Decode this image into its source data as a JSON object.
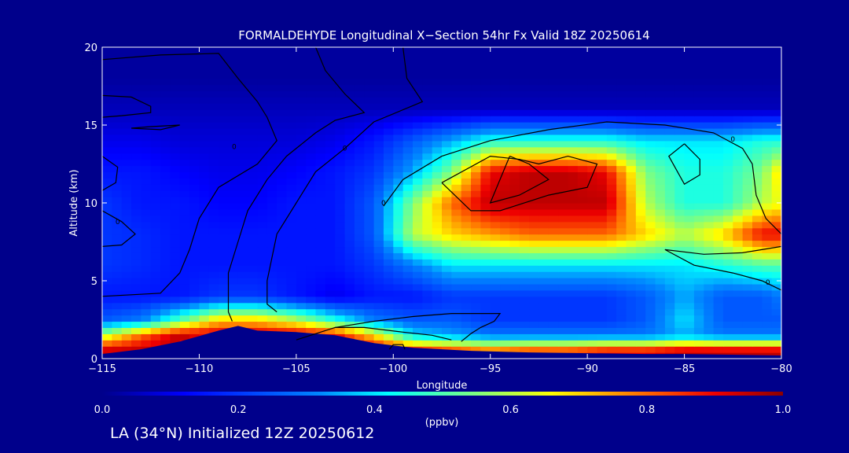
{
  "chart_data": {
    "type": "heatmap",
    "title": "FORMALDEHYDE Longitudinal X−Section 54hr  Fx Valid 18Z 20250614",
    "xlabel": "Longitude",
    "ylabel": "Altitude (km)",
    "xlim": [
      -115,
      -80
    ],
    "ylim": [
      0,
      20
    ],
    "x_ticks": [
      "−115",
      "−110",
      "−105",
      "−100",
      "−95",
      "−90",
      "−85",
      "−80"
    ],
    "y_ticks": [
      "0",
      "5",
      "10",
      "15",
      "20"
    ],
    "colorbar": {
      "range": [
        0.0,
        1.0
      ],
      "ticks": [
        "0.0",
        "0.2",
        "0.4",
        "0.6",
        "0.8",
        "1.0"
      ],
      "unit": "(ppbv)"
    },
    "x_values": [
      -115,
      -113,
      -111,
      -109,
      -107,
      -105,
      -103,
      -101,
      -99,
      -97,
      -95,
      -93,
      -91,
      -89,
      -87,
      -85,
      -83,
      -81,
      -80
    ],
    "y_values": [
      0.5,
      1.5,
      2.5,
      4,
      6,
      8,
      10,
      12,
      14,
      16,
      18
    ],
    "z": [
      [
        0.95,
        0.95,
        0.95,
        0.0,
        0.0,
        0.0,
        0.95,
        0.95,
        0.9,
        0.85,
        0.8,
        0.85,
        0.85,
        0.9,
        0.9,
        0.95,
        0.95,
        0.95,
        0.95
      ],
      [
        0.6,
        0.8,
        0.95,
        0.95,
        0.95,
        0.95,
        0.9,
        0.7,
        0.4,
        0.35,
        0.3,
        0.3,
        0.3,
        0.3,
        0.3,
        0.35,
        0.3,
        0.3,
        0.3
      ],
      [
        0.25,
        0.3,
        0.5,
        0.7,
        0.7,
        0.6,
        0.45,
        0.3,
        0.25,
        0.25,
        0.2,
        0.2,
        0.2,
        0.2,
        0.25,
        0.4,
        0.25,
        0.25,
        0.25
      ],
      [
        0.15,
        0.15,
        0.15,
        0.2,
        0.2,
        0.15,
        0.1,
        0.15,
        0.15,
        0.2,
        0.2,
        0.2,
        0.2,
        0.2,
        0.25,
        0.35,
        0.25,
        0.25,
        0.3
      ],
      [
        0.2,
        0.18,
        0.15,
        0.15,
        0.15,
        0.15,
        0.15,
        0.2,
        0.3,
        0.4,
        0.4,
        0.4,
        0.4,
        0.4,
        0.4,
        0.4,
        0.45,
        0.5,
        0.5
      ],
      [
        0.2,
        0.18,
        0.15,
        0.15,
        0.15,
        0.15,
        0.15,
        0.25,
        0.6,
        0.7,
        0.75,
        0.8,
        0.8,
        0.8,
        0.7,
        0.6,
        0.7,
        0.9,
        0.9
      ],
      [
        0.2,
        0.15,
        0.15,
        0.12,
        0.12,
        0.15,
        0.15,
        0.25,
        0.55,
        0.8,
        0.95,
        0.95,
        0.95,
        0.95,
        0.6,
        0.45,
        0.45,
        0.6,
        0.65
      ],
      [
        0.15,
        0.15,
        0.12,
        0.1,
        0.1,
        0.12,
        0.15,
        0.2,
        0.35,
        0.55,
        0.9,
        0.95,
        0.95,
        0.9,
        0.55,
        0.45,
        0.45,
        0.55,
        0.7
      ],
      [
        0.1,
        0.1,
        0.08,
        0.08,
        0.08,
        0.08,
        0.1,
        0.15,
        0.25,
        0.35,
        0.45,
        0.45,
        0.45,
        0.45,
        0.4,
        0.4,
        0.4,
        0.45,
        0.45
      ],
      [
        0.05,
        0.05,
        0.05,
        0.05,
        0.05,
        0.05,
        0.05,
        0.05,
        0.05,
        0.05,
        0.05,
        0.05,
        0.05,
        0.05,
        0.05,
        0.05,
        0.05,
        0.05,
        0.05
      ],
      [
        0.02,
        0.02,
        0.02,
        0.02,
        0.02,
        0.02,
        0.02,
        0.02,
        0.02,
        0.02,
        0.02,
        0.02,
        0.02,
        0.02,
        0.02,
        0.02,
        0.02,
        0.02,
        0.02
      ]
    ],
    "terrain": [
      [
        -115,
        0.3
      ],
      [
        -113,
        0.6
      ],
      [
        -111,
        1.1
      ],
      [
        -109,
        1.8
      ],
      [
        -108,
        2.1
      ],
      [
        -107,
        1.8
      ],
      [
        -105,
        1.7
      ],
      [
        -103,
        1.5
      ],
      [
        -101,
        1.0
      ],
      [
        -99,
        0.7
      ],
      [
        -96,
        0.5
      ],
      [
        -93,
        0.4
      ],
      [
        -90,
        0.35
      ],
      [
        -87,
        0.3
      ],
      [
        -85,
        0.3
      ],
      [
        -80,
        0.2
      ]
    ],
    "contours": [
      {
        "label": "0",
        "label_at": [
          -108.2,
          13.6
        ],
        "points": [
          [
            -115,
            19.2
          ],
          [
            -112,
            19.5
          ],
          [
            -109,
            19.6
          ],
          [
            -108,
            18.0
          ],
          [
            -107,
            16.5
          ],
          [
            -106.5,
            15.5
          ],
          [
            -106,
            14.0
          ],
          [
            -107,
            12.5
          ],
          [
            -109,
            11.0
          ],
          [
            -110,
            9.0
          ],
          [
            -110.5,
            7.0
          ],
          [
            -111,
            5.5
          ],
          [
            -112,
            4.2
          ],
          [
            -115,
            4.0
          ]
        ]
      },
      {
        "label": "0",
        "label_at": [
          -102.5,
          13.5
        ],
        "points": [
          [
            -104,
            20
          ],
          [
            -103.5,
            18.5
          ],
          [
            -102.5,
            17.0
          ],
          [
            -101.5,
            15.8
          ],
          [
            -103,
            15.3
          ],
          [
            -104,
            14.5
          ],
          [
            -105.5,
            13.0
          ],
          [
            -106.5,
            11.5
          ],
          [
            -107.5,
            9.5
          ],
          [
            -108,
            7.5
          ],
          [
            -108.5,
            5.5
          ],
          [
            -108.5,
            3.0
          ],
          [
            -108.3,
            2.4
          ]
        ]
      },
      {
        "label": "0",
        "label_at": [
          -100.5,
          10.0
        ],
        "points": [
          [
            -99.5,
            20
          ],
          [
            -99.3,
            18.0
          ],
          [
            -98.5,
            16.5
          ],
          [
            -101,
            15.2
          ],
          [
            -102.5,
            13.5
          ],
          [
            -104,
            12.0
          ],
          [
            -105,
            10.0
          ],
          [
            -106,
            8.0
          ],
          [
            -106.5,
            5.0
          ],
          [
            -106.5,
            3.5
          ],
          [
            -106,
            3.0
          ]
        ]
      },
      {
        "label": "0",
        "label_at": [
          -82.5,
          14.1
        ],
        "points": [
          [
            -100.5,
            9.8
          ],
          [
            -99.5,
            11.5
          ],
          [
            -97.5,
            13.0
          ],
          [
            -95,
            14.0
          ],
          [
            -92,
            14.7
          ],
          [
            -89,
            15.2
          ],
          [
            -86,
            15.0
          ],
          [
            -83.5,
            14.5
          ],
          [
            -82,
            13.5
          ],
          [
            -81.5,
            12.5
          ],
          [
            -81.3,
            10.5
          ],
          [
            -80.8,
            9.0
          ],
          [
            -80,
            8.0
          ]
        ]
      },
      {
        "label": "",
        "label_at": null,
        "points": [
          [
            -97.5,
            11.3
          ],
          [
            -95,
            13.0
          ],
          [
            -93.5,
            12.8
          ],
          [
            -92.5,
            12.5
          ],
          [
            -91,
            13.0
          ],
          [
            -89.5,
            12.5
          ],
          [
            -90,
            11.0
          ],
          [
            -92,
            10.5
          ],
          [
            -94.5,
            9.5
          ],
          [
            -96,
            9.5
          ],
          [
            -97.5,
            11.3
          ]
        ]
      },
      {
        "label": "",
        "label_at": null,
        "points": [
          [
            -94,
            13.0
          ],
          [
            -93,
            12.5
          ],
          [
            -92,
            11.5
          ],
          [
            -93.5,
            10.5
          ],
          [
            -95,
            10.0
          ],
          [
            -94,
            13.0
          ]
        ]
      },
      {
        "label": "",
        "label_at": null,
        "points": [
          [
            -85,
            13.8
          ],
          [
            -84.2,
            12.8
          ],
          [
            -84.2,
            11.8
          ],
          [
            -85,
            11.2
          ],
          [
            -85.8,
            13.0
          ],
          [
            -85,
            13.8
          ]
        ]
      },
      {
        "label": "0",
        "label_at": [
          -80.7,
          4.9
        ],
        "points": [
          [
            -80,
            7.2
          ],
          [
            -82,
            6.8
          ],
          [
            -84,
            6.7
          ],
          [
            -86,
            7.0
          ],
          [
            -84.5,
            6.0
          ],
          [
            -82.5,
            5.5
          ],
          [
            -81,
            5.0
          ],
          [
            -80,
            4.4
          ]
        ]
      },
      {
        "label": "",
        "label_at": null,
        "points": [
          [
            -105,
            1.2
          ],
          [
            -103,
            2.0
          ],
          [
            -101,
            2.4
          ],
          [
            -99,
            2.7
          ],
          [
            -97,
            2.9
          ],
          [
            -94.5,
            2.9
          ],
          [
            -94.8,
            2.4
          ],
          [
            -95.5,
            2.0
          ],
          [
            -96,
            1.6
          ],
          [
            -96.5,
            1.1
          ]
        ]
      },
      {
        "label": "",
        "label_at": null,
        "points": [
          [
            -103,
            2.0
          ],
          [
            -101.5,
            2.0
          ],
          [
            -99.5,
            1.7
          ],
          [
            -98,
            1.5
          ],
          [
            -97,
            1.2
          ]
        ]
      },
      {
        "label": "",
        "label_at": null,
        "points": [
          [
            -100.2,
            0.6
          ],
          [
            -100,
            0.9
          ],
          [
            -99.5,
            0.9
          ],
          [
            -99.4,
            0.6
          ]
        ]
      },
      {
        "label": "",
        "label_at": null,
        "points": [
          [
            -115,
            16.9
          ],
          [
            -113.5,
            16.8
          ],
          [
            -112.5,
            16.2
          ],
          [
            -112.5,
            15.8
          ],
          [
            -114,
            15.6
          ],
          [
            -115,
            15.5
          ]
        ]
      },
      {
        "label": "",
        "label_at": null,
        "points": [
          [
            -113.5,
            14.8
          ],
          [
            -112.5,
            14.9
          ],
          [
            -111,
            15.0
          ],
          [
            -112,
            14.7
          ],
          [
            -113.5,
            14.8
          ]
        ]
      },
      {
        "label": "",
        "label_at": null,
        "points": [
          [
            -115,
            13.0
          ],
          [
            -114.2,
            12.3
          ],
          [
            -114.3,
            11.3
          ],
          [
            -115,
            10.8
          ]
        ]
      },
      {
        "label": "0",
        "label_at": [
          -114.2,
          8.8
        ],
        "points": [
          [
            -115,
            9.5
          ],
          [
            -114,
            8.8
          ],
          [
            -113.3,
            8.0
          ],
          [
            -114,
            7.3
          ],
          [
            -115,
            7.2
          ]
        ]
      }
    ]
  },
  "footer_text": "LA (34°N) Initialized 12Z 20250612"
}
